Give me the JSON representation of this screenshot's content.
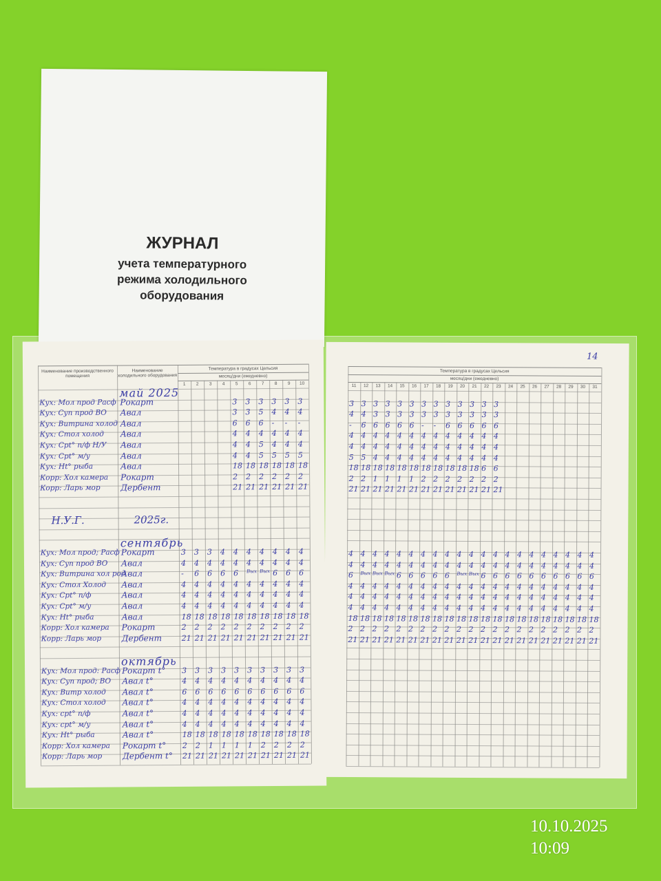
{
  "cover": {
    "title": "ЖУРНАЛ",
    "subtitle_lines": [
      "учета температурного",
      "режима холодильного",
      "оборудования"
    ]
  },
  "left_page": {
    "col_room": "Наименование производственного помещения",
    "col_equipment": "Наименование холодильного оборудования",
    "col_temp": "Температура в градусах Цельсия",
    "col_month_day": "месяц/дни (ежедневно)",
    "days": [
      "1",
      "2",
      "3",
      "4",
      "5",
      "6",
      "7",
      "8",
      "9",
      "10"
    ]
  },
  "right_page": {
    "page_number": "14",
    "col_temp": "Температура в градусах Цельсия",
    "col_month_day": "месяц/дни (ежедневно)",
    "days": [
      "11",
      "12",
      "13",
      "14",
      "15",
      "16",
      "17",
      "18",
      "19",
      "20",
      "21",
      "22",
      "23",
      "24",
      "25",
      "26",
      "27",
      "28",
      "29",
      "30",
      "31"
    ]
  },
  "note": {
    "label": "Н.У.Г.",
    "year": "2025г."
  },
  "sections": [
    {
      "month": "май 2025",
      "row": 0,
      "left_start_day": 5,
      "rows": [
        {
          "room": "Кух: Мол прод Расф",
          "equipment": "Рокарт",
          "left": [
            "3",
            "3",
            "3",
            "3",
            "3",
            "3"
          ],
          "right": [
            "3",
            "3",
            "3",
            "3",
            "3",
            "3",
            "3",
            "3",
            "3",
            "3",
            "3",
            "3",
            "3"
          ]
        },
        {
          "room": "Кух: Суп прод ВО",
          "equipment": "Авал",
          "left": [
            "3",
            "3",
            "5",
            "4",
            "4",
            "4"
          ],
          "right": [
            "4",
            "4",
            "3",
            "3",
            "3",
            "3",
            "3",
            "3",
            "3",
            "3",
            "3",
            "3",
            "3"
          ]
        },
        {
          "room": "Кух: Витрина холод",
          "equipment": "Авал",
          "left": [
            "6",
            "6",
            "6",
            "-",
            "-",
            "-"
          ],
          "right": [
            "-",
            "6",
            "6",
            "6",
            "6",
            "6",
            "-",
            "-",
            "6",
            "6",
            "6",
            "6",
            "6"
          ]
        },
        {
          "room": "Кух: Стол холод",
          "equipment": "Авал",
          "left": [
            "4",
            "4",
            "4",
            "4",
            "4",
            "4"
          ],
          "right": [
            "4",
            "4",
            "4",
            "4",
            "4",
            "4",
            "4",
            "4",
            "4",
            "4",
            "4",
            "4",
            "4"
          ]
        },
        {
          "room": "Кух: Срt° п/ф Н/У",
          "equipment": "Авал",
          "left": [
            "4",
            "4",
            "5",
            "4",
            "4",
            "4"
          ],
          "right": [
            "4",
            "4",
            "4",
            "4",
            "4",
            "4",
            "4",
            "4",
            "4",
            "4",
            "4",
            "4",
            "4"
          ]
        },
        {
          "room": "Кух: Срt° м/у",
          "equipment": "Авал",
          "left": [
            "4",
            "4",
            "5",
            "5",
            "5",
            "5"
          ],
          "right": [
            "5",
            "5",
            "4",
            "4",
            "4",
            "4",
            "4",
            "4",
            "4",
            "4",
            "4",
            "4",
            "4"
          ]
        },
        {
          "room": "Кух: Нt° рыба",
          "equipment": "Авал",
          "left": [
            "18",
            "18",
            "18",
            "18",
            "18",
            "18"
          ],
          "right": [
            "18",
            "18",
            "18",
            "18",
            "18",
            "18",
            "18",
            "18",
            "18",
            "18",
            "18",
            "6",
            "6"
          ]
        },
        {
          "room": "Корр: Хол камера",
          "equipment": "Рокарт",
          "left": [
            "2",
            "2",
            "2",
            "2",
            "2",
            "2"
          ],
          "right": [
            "2",
            "2",
            "1",
            "1",
            "1",
            "1",
            "2",
            "2",
            "2",
            "2",
            "2",
            "2",
            "2"
          ]
        },
        {
          "room": "Корр: Ларь мор",
          "equipment": "Дербент",
          "left": [
            "21",
            "21",
            "21",
            "21",
            "21",
            "21"
          ],
          "right": [
            "21",
            "21",
            "21",
            "21",
            "21",
            "21",
            "21",
            "21",
            "21",
            "21",
            "21",
            "21",
            "21"
          ]
        }
      ]
    },
    {
      "month": "сентябрь",
      "row": 14,
      "left_start_day": 1,
      "rows": [
        {
          "room": "Кух: Мол прод; Расф",
          "equipment": "Рокарт",
          "left": [
            "3",
            "3",
            "3",
            "4",
            "4",
            "4",
            "4",
            "4",
            "4",
            "4"
          ],
          "right": [
            "4",
            "4",
            "4",
            "4",
            "4",
            "4",
            "4",
            "4",
            "4",
            "4",
            "4",
            "4",
            "4",
            "4",
            "4",
            "4",
            "4",
            "4",
            "4",
            "4",
            "4"
          ]
        },
        {
          "room": "Кух: Суп прод ВО",
          "equipment": "Авал",
          "left": [
            "4",
            "4",
            "4",
            "4",
            "4",
            "4",
            "4",
            "4",
            "4",
            "4"
          ],
          "right": [
            "4",
            "4",
            "4",
            "4",
            "4",
            "4",
            "4",
            "4",
            "4",
            "4",
            "4",
            "4",
            "4",
            "4",
            "4",
            "4",
            "4",
            "4",
            "4",
            "4",
            "4"
          ]
        },
        {
          "room": "Кух: Витрина хол род",
          "equipment": "Авал",
          "left": [
            "-",
            "6",
            "6",
            "6",
            "6",
            "Вых",
            "Вых",
            "6",
            "6",
            "6"
          ],
          "right": [
            "6",
            "Вых",
            "Вых",
            "Вых",
            "6",
            "6",
            "6",
            "6",
            "6",
            "Вых",
            "Вых",
            "6",
            "6",
            "6",
            "6",
            "6",
            "6",
            "6",
            "6",
            "6",
            "6"
          ]
        },
        {
          "room": "Кух: Стол Холод",
          "equipment": "Авал",
          "left": [
            "4",
            "4",
            "4",
            "4",
            "4",
            "4",
            "4",
            "4",
            "4",
            "4"
          ],
          "right": [
            "4",
            "4",
            "4",
            "4",
            "4",
            "4",
            "4",
            "4",
            "4",
            "4",
            "4",
            "4",
            "4",
            "4",
            "4",
            "4",
            "4",
            "4",
            "4",
            "4",
            "4"
          ]
        },
        {
          "room": "Кух: Срt° п/ф",
          "equipment": "Авал",
          "left": [
            "4",
            "4",
            "4",
            "4",
            "4",
            "4",
            "4",
            "4",
            "4",
            "4"
          ],
          "right": [
            "4",
            "4",
            "4",
            "4",
            "4",
            "4",
            "4",
            "4",
            "4",
            "4",
            "4",
            "4",
            "4",
            "4",
            "4",
            "4",
            "4",
            "4",
            "4",
            "4",
            "4"
          ]
        },
        {
          "room": "Кух: Срt° м/у",
          "equipment": "Авал",
          "left": [
            "4",
            "4",
            "4",
            "4",
            "4",
            "4",
            "4",
            "4",
            "4",
            "4"
          ],
          "right": [
            "4",
            "4",
            "4",
            "4",
            "4",
            "4",
            "4",
            "4",
            "4",
            "4",
            "4",
            "4",
            "4",
            "4",
            "4",
            "4",
            "4",
            "4",
            "4",
            "4",
            "4"
          ]
        },
        {
          "room": "Кух: Нt° рыба",
          "equipment": "Авал",
          "left": [
            "18",
            "18",
            "18",
            "18",
            "18",
            "18",
            "18",
            "18",
            "18",
            "18"
          ],
          "right": [
            "18",
            "18",
            "18",
            "18",
            "18",
            "18",
            "18",
            "18",
            "18",
            "18",
            "18",
            "18",
            "18",
            "18",
            "18",
            "18",
            "18",
            "18",
            "18",
            "18",
            "18"
          ]
        },
        {
          "room": "Корр: Хол камера",
          "equipment": "Рокарт",
          "left": [
            "2",
            "2",
            "2",
            "2",
            "2",
            "2",
            "2",
            "2",
            "2",
            "2"
          ],
          "right": [
            "2",
            "2",
            "2",
            "2",
            "2",
            "2",
            "2",
            "2",
            "2",
            "2",
            "2",
            "2",
            "2",
            "2",
            "2",
            "2",
            "2",
            "2",
            "2",
            "2",
            "2"
          ]
        },
        {
          "room": "Корр: Ларь мор",
          "equipment": "Дербент",
          "left": [
            "21",
            "21",
            "21",
            "21",
            "21",
            "21",
            "21",
            "21",
            "21",
            "21"
          ],
          "right": [
            "21",
            "21",
            "21",
            "21",
            "21",
            "21",
            "21",
            "21",
            "21",
            "21",
            "21",
            "21",
            "21",
            "21",
            "21",
            "21",
            "21",
            "21",
            "21",
            "21",
            "21"
          ]
        }
      ]
    },
    {
      "month": "октябрь",
      "row": 25,
      "left_start_day": 1,
      "rows": [
        {
          "room": "Кух: Мол прод: Расф",
          "equipment": "Рокарт t°",
          "left": [
            "3",
            "3",
            "3",
            "3",
            "3",
            "3",
            "3",
            "3",
            "3",
            "3"
          ],
          "right": []
        },
        {
          "room": "Кух: Суп прод; ВО",
          "equipment": "Авал t°",
          "left": [
            "4",
            "4",
            "4",
            "4",
            "4",
            "4",
            "4",
            "4",
            "4",
            "4"
          ],
          "right": []
        },
        {
          "room": "Кух: Витр холод",
          "equipment": "Авал t°",
          "left": [
            "6",
            "6",
            "6",
            "6",
            "6",
            "6",
            "6",
            "6",
            "6",
            "6"
          ],
          "right": []
        },
        {
          "room": "Кух: Стол холод",
          "equipment": "Авал t°",
          "left": [
            "4",
            "4",
            "4",
            "4",
            "4",
            "4",
            "4",
            "4",
            "4",
            "4"
          ],
          "right": []
        },
        {
          "room": "Кух: срt° п/ф",
          "equipment": "Авал t°",
          "left": [
            "4",
            "4",
            "4",
            "4",
            "4",
            "4",
            "4",
            "4",
            "4",
            "4"
          ],
          "right": []
        },
        {
          "room": "Кух: срt° м/у",
          "equipment": "Авал t°",
          "left": [
            "4",
            "4",
            "4",
            "4",
            "4",
            "4",
            "4",
            "4",
            "4",
            "4"
          ],
          "right": []
        },
        {
          "room": "Кух: Нt° рыба",
          "equipment": "Авал t°",
          "left": [
            "18",
            "18",
            "18",
            "18",
            "18",
            "18",
            "18",
            "18",
            "18",
            "18"
          ],
          "right": []
        },
        {
          "room": "Корр: Хол камера",
          "equipment": "Рокарт t°",
          "left": [
            "2",
            "2",
            "1",
            "1",
            "1",
            "1",
            "2",
            "2",
            "2",
            "2"
          ],
          "right": []
        },
        {
          "room": "Корр: Ларь мор",
          "equipment": "Дербент t°",
          "left": [
            "21",
            "21",
            "21",
            "21",
            "21",
            "21",
            "21",
            "21",
            "21",
            "21"
          ],
          "right": []
        }
      ]
    }
  ],
  "timestamp": {
    "date": "10.10.2025",
    "time": "10:09"
  },
  "colors": {
    "background": "#84d22a",
    "ink": "#3c3fa6",
    "paper": "#f3f1e8"
  }
}
